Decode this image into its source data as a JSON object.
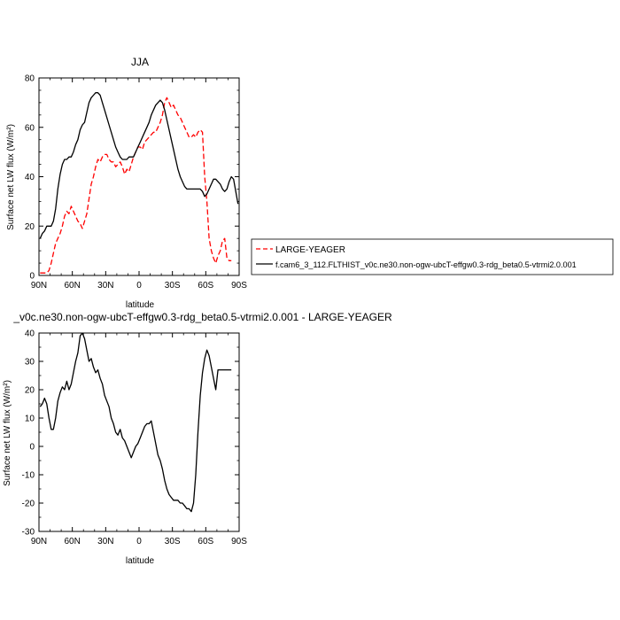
{
  "chart_data": [
    {
      "type": "line",
      "title": "JJA",
      "xlabel": "latitude",
      "ylabel": "Surface net LW flux (W/m²)",
      "ylim": [
        0,
        80
      ],
      "xlim": [
        90,
        -90
      ],
      "x_ticks": [
        90,
        60,
        30,
        0,
        -30,
        -60,
        -90
      ],
      "x_tick_labels": [
        "90N",
        "60N",
        "30N",
        "0",
        "30S",
        "60S",
        "90S"
      ],
      "y_ticks": [
        0,
        20,
        40,
        60,
        80
      ],
      "y_tick_labels": [
        "0",
        "20",
        "40",
        "60",
        "80"
      ],
      "grid": false,
      "legend": "right",
      "series": [
        {
          "name": "LARGE-YEAGER",
          "color": "#ff0000",
          "dash": "dashed",
          "x": [
            89,
            87,
            85,
            83,
            81,
            79,
            77,
            75,
            73,
            71,
            69,
            67,
            65,
            63,
            61,
            59,
            57,
            55,
            53,
            51,
            49,
            47,
            45,
            43,
            41,
            39,
            37,
            35,
            33,
            31,
            29,
            27,
            25,
            23,
            21,
            19,
            17,
            15,
            13,
            11,
            9,
            7,
            5,
            3,
            1,
            -1,
            -3,
            -5,
            -7,
            -9,
            -11,
            -13,
            -15,
            -17,
            -19,
            -21,
            -23,
            -25,
            -27,
            -29,
            -31,
            -33,
            -35,
            -37,
            -39,
            -41,
            -43,
            -45,
            -47,
            -49,
            -51,
            -53,
            -55,
            -57,
            -59,
            -61,
            -63,
            -65,
            -67,
            -69,
            -71,
            -73,
            -75,
            -77,
            -79,
            -81,
            -83
          ],
          "y": [
            1,
            1,
            1,
            1,
            2,
            5,
            9,
            13,
            15,
            17,
            20,
            24,
            26,
            25,
            28,
            26,
            24,
            22,
            21,
            19,
            22,
            25,
            31,
            37,
            40,
            44,
            47,
            46,
            48,
            49,
            49,
            47,
            46,
            46,
            44,
            45,
            46,
            44,
            41,
            43,
            42,
            45,
            48,
            50,
            52,
            52,
            51,
            54,
            55,
            56,
            57,
            58,
            58,
            60,
            62,
            65,
            70,
            72,
            70,
            68,
            69,
            67,
            65,
            64,
            62,
            60,
            58,
            56,
            56,
            57,
            56,
            58,
            59,
            58,
            40,
            30,
            15,
            10,
            7,
            5,
            8,
            10,
            14,
            15,
            7,
            6,
            6
          ]
        },
        {
          "name": "f.cam6_3_112.FLTHIST_v0c.ne30.non-ogw-ubcT-effgw0.3-rdg_beta0.5-vtrmi2.0.001",
          "color": "#000000",
          "dash": "solid",
          "x": [
            89,
            87,
            85,
            83,
            81,
            79,
            77,
            75,
            73,
            71,
            69,
            67,
            65,
            63,
            61,
            59,
            57,
            55,
            53,
            51,
            49,
            47,
            45,
            43,
            41,
            39,
            37,
            35,
            33,
            31,
            29,
            27,
            25,
            23,
            21,
            19,
            17,
            15,
            13,
            11,
            9,
            7,
            5,
            3,
            1,
            -1,
            -3,
            -5,
            -7,
            -9,
            -11,
            -13,
            -15,
            -17,
            -19,
            -21,
            -23,
            -25,
            -27,
            -29,
            -31,
            -33,
            -35,
            -37,
            -39,
            -41,
            -43,
            -45,
            -47,
            -49,
            -51,
            -53,
            -55,
            -57,
            -59,
            -61,
            -63,
            -65,
            -67,
            -69,
            -71,
            -73,
            -75,
            -77,
            -79,
            -81,
            -83,
            -85,
            -87,
            -89
          ],
          "y": [
            15,
            17,
            18,
            20,
            20,
            20,
            22,
            27,
            35,
            41,
            45,
            47,
            47,
            48,
            48,
            50,
            53,
            55,
            59,
            61,
            62,
            66,
            70,
            72,
            73,
            74,
            74,
            73,
            70,
            67,
            64,
            61,
            58,
            55,
            52,
            50,
            48,
            47,
            47,
            47,
            48,
            48,
            48,
            50,
            52,
            54,
            56,
            58,
            60,
            62,
            65,
            67,
            69,
            70,
            71,
            70,
            67,
            63,
            59,
            55,
            51,
            47,
            43,
            40,
            38,
            36,
            35,
            35,
            35,
            35,
            35,
            35,
            35,
            34,
            32,
            33,
            35,
            37,
            39,
            39,
            38,
            37,
            35,
            34,
            35,
            38,
            40,
            39,
            34,
            29
          ]
        }
      ]
    },
    {
      "type": "line",
      "title": "_v0c.ne30.non-ogw-ubcT-effgw0.3-rdg_beta0.5-vtrmi2.0.001 - LARGE-YEAGER",
      "xlabel": "latitude",
      "ylabel": "Surface net LW flux (W/m²)",
      "ylim": [
        -30,
        40
      ],
      "xlim": [
        90,
        -90
      ],
      "x_ticks": [
        90,
        60,
        30,
        0,
        -30,
        -60,
        -90
      ],
      "x_tick_labels": [
        "90N",
        "60N",
        "30N",
        "0",
        "30S",
        "60S",
        "90S"
      ],
      "y_ticks": [
        -30,
        -20,
        -10,
        0,
        10,
        20,
        30,
        40
      ],
      "y_tick_labels": [
        "-30",
        "-20",
        "-10",
        "0",
        "10",
        "20",
        "30",
        "40"
      ],
      "grid": false,
      "series": [
        {
          "color": "#000000",
          "dash": "solid",
          "x": [
            89,
            87,
            85,
            83,
            81,
            79,
            77,
            75,
            73,
            71,
            69,
            67,
            65,
            63,
            61,
            59,
            57,
            55,
            53,
            51,
            49,
            47,
            45,
            43,
            41,
            39,
            37,
            35,
            33,
            31,
            29,
            27,
            25,
            23,
            21,
            19,
            17,
            15,
            13,
            11,
            9,
            7,
            5,
            3,
            1,
            -1,
            -3,
            -5,
            -7,
            -9,
            -11,
            -13,
            -15,
            -17,
            -19,
            -21,
            -23,
            -25,
            -27,
            -29,
            -31,
            -33,
            -35,
            -37,
            -39,
            -41,
            -43,
            -45,
            -47,
            -49,
            -51,
            -53,
            -55,
            -57,
            -59,
            -61,
            -63,
            -65,
            -67,
            -69,
            -71,
            -73,
            -75,
            -77,
            -79,
            -81,
            -83
          ],
          "y": [
            14,
            15,
            17,
            15,
            10,
            6,
            6,
            10,
            16,
            19,
            21,
            20,
            23,
            20,
            22,
            26,
            30,
            33,
            39,
            40,
            38,
            34,
            30,
            31,
            28,
            26,
            27,
            24,
            22,
            18,
            16,
            14,
            10,
            8,
            5,
            4,
            6,
            3,
            2,
            0,
            -2,
            -4,
            -2,
            0,
            1,
            3,
            5,
            7,
            8,
            8,
            9,
            5,
            1,
            -3,
            -5,
            -8,
            -12,
            -15,
            -17,
            -18,
            -19,
            -19,
            -19,
            -20,
            -20,
            -21,
            -22,
            -22,
            -23,
            -20,
            -10,
            5,
            18,
            26,
            31,
            34,
            32,
            28,
            24,
            20,
            27,
            27,
            27,
            27,
            27,
            27,
            27
          ]
        }
      ]
    }
  ]
}
